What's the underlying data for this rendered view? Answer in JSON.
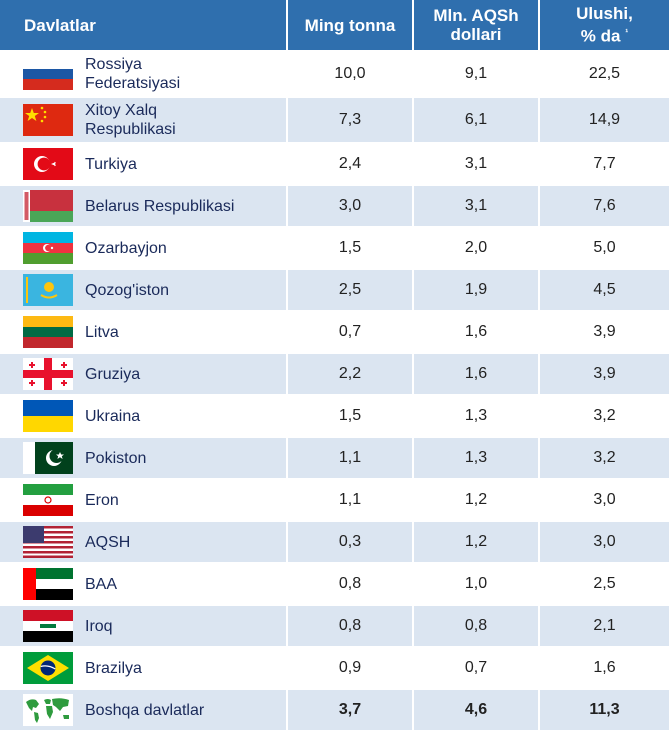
{
  "headers": {
    "country": "Davlatlar",
    "tonnes": "Ming tonna",
    "usd_line1": "Mln. AQSh",
    "usd_line2": "dollari",
    "share_line1": "Ulushi,",
    "share_line2": "% da",
    "share_sup": "¹"
  },
  "rows": [
    {
      "name_line1": "Rossiya",
      "name_line2": "Federatsiyasi",
      "tonnes": "10,0",
      "usd": "9,1",
      "share": "22,5",
      "flag": "russia-flag-icon"
    },
    {
      "name_line1": "Xitoy Xalq",
      "name_line2": "Respublikasi",
      "tonnes": "7,3",
      "usd": "6,1",
      "share": "14,9",
      "flag": "china-flag-icon"
    },
    {
      "name_line1": "Turkiya",
      "tonnes": "2,4",
      "usd": "3,1",
      "share": "7,7",
      "flag": "turkey-flag-icon"
    },
    {
      "name_line1": "Belarus Respublikasi",
      "tonnes": "3,0",
      "usd": "3,1",
      "share": "7,6",
      "flag": "belarus-flag-icon"
    },
    {
      "name_line1": "Ozarbayjon",
      "tonnes": "1,5",
      "usd": "2,0",
      "share": "5,0",
      "flag": "azerbaijan-flag-icon"
    },
    {
      "name_line1": "Qozog'iston",
      "tonnes": "2,5",
      "usd": "1,9",
      "share": "4,5",
      "flag": "kazakhstan-flag-icon"
    },
    {
      "name_line1": "Litva",
      "tonnes": "0,7",
      "usd": "1,6",
      "share": "3,9",
      "flag": "lithuania-flag-icon"
    },
    {
      "name_line1": "Gruziya",
      "tonnes": "2,2",
      "usd": "1,6",
      "share": "3,9",
      "flag": "georgia-flag-icon"
    },
    {
      "name_line1": "Ukraina",
      "tonnes": "1,5",
      "usd": "1,3",
      "share": "3,2",
      "flag": "ukraine-flag-icon"
    },
    {
      "name_line1": "Pokiston",
      "tonnes": "1,1",
      "usd": "1,3",
      "share": "3,2",
      "flag": "pakistan-flag-icon"
    },
    {
      "name_line1": "Eron",
      "tonnes": "1,1",
      "usd": "1,2",
      "share": "3,0",
      "flag": "iran-flag-icon"
    },
    {
      "name_line1": "AQSH",
      "tonnes": "0,3",
      "usd": "1,2",
      "share": "3,0",
      "flag": "usa-flag-icon"
    },
    {
      "name_line1": "BAA",
      "tonnes": "0,8",
      "usd": "1,0",
      "share": "2,5",
      "flag": "uae-flag-icon"
    },
    {
      "name_line1": "Iroq",
      "tonnes": "0,8",
      "usd": "0,8",
      "share": "2,1",
      "flag": "iraq-flag-icon"
    },
    {
      "name_line1": "Brazilya",
      "tonnes": "0,9",
      "usd": "0,7",
      "share": "1,6",
      "flag": "brazil-flag-icon"
    },
    {
      "name_line1": "Boshqa davlatlar",
      "tonnes": "3,7",
      "usd": "4,6",
      "share": "11,3",
      "flag": "world-map-icon"
    }
  ]
}
